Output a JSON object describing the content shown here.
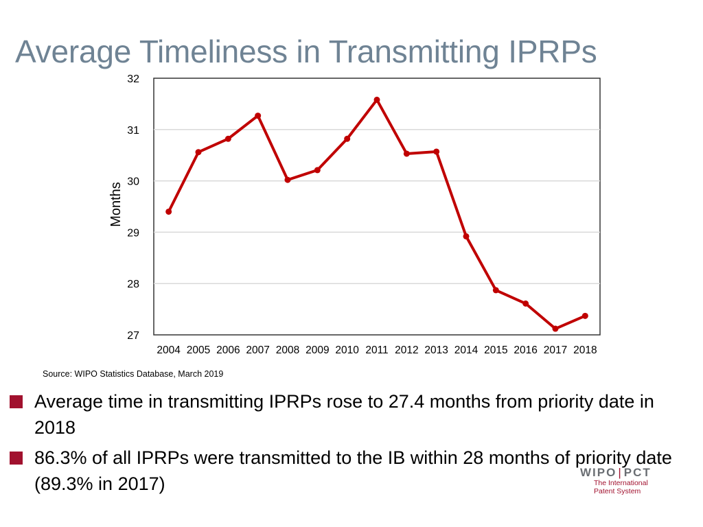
{
  "title": "Average Timeliness in Transmitting IPRPs",
  "source": "Source: WIPO Statistics Database, March 2019",
  "bullets": [
    "Average time in transmitting IPRPs rose to 27.4 months from priority date in 2018",
    "86.3% of all IPRPs were transmitted to the IB within 28 months of priority date (89.3% in 2017)"
  ],
  "logo": {
    "wipo": "WIPO",
    "pct": "PCT",
    "line1": "The International",
    "line2": "Patent System"
  },
  "colors": {
    "title": "#6f8394",
    "series": "#c00000",
    "bullet": "#a1112e",
    "grid": "#d9d9d9"
  },
  "chart_data": {
    "type": "line",
    "title": "",
    "xlabel": "",
    "ylabel": "Months",
    "ylim": [
      27,
      32
    ],
    "yticks": [
      27,
      28,
      29,
      30,
      31,
      32
    ],
    "grid": true,
    "categories": [
      "2004",
      "2005",
      "2006",
      "2007",
      "2008",
      "2009",
      "2010",
      "2011",
      "2012",
      "2013",
      "2014",
      "2015",
      "2016",
      "2017",
      "2018"
    ],
    "series": [
      {
        "values": [
          29.4,
          30.56,
          30.82,
          31.27,
          30.02,
          30.21,
          30.82,
          31.58,
          30.53,
          30.57,
          28.92,
          27.87,
          27.61,
          27.12,
          27.37
        ]
      }
    ]
  }
}
